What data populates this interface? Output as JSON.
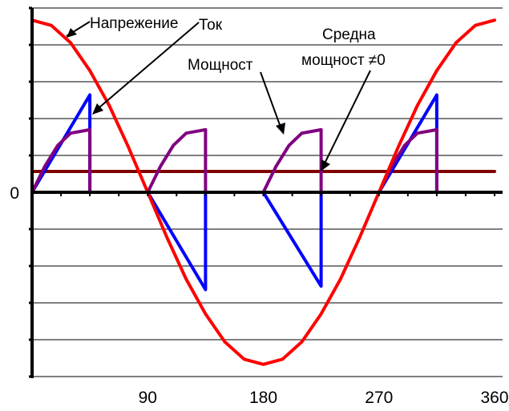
{
  "chart_data": {
    "type": "line",
    "title": "",
    "xlabel": "",
    "ylabel": "",
    "xlim": [
      0,
      360
    ],
    "ylim": [
      -1,
      1
    ],
    "x_ticks": [
      90,
      180,
      270,
      360
    ],
    "y_tick_labels": [
      {
        "y": 0,
        "label": "0"
      }
    ],
    "grid": true,
    "colors": {
      "voltage": "#ff0000",
      "current": "#0000ff",
      "power": "#800080",
      "average": "#800000",
      "axis": "#000000",
      "grid": "#000000"
    },
    "series": [
      {
        "name": "Напрежение",
        "color": "#ff0000",
        "x": [
          0,
          15,
          30,
          45,
          60,
          75,
          90,
          105,
          120,
          135,
          150,
          165,
          180,
          195,
          210,
          225,
          240,
          255,
          270,
          285,
          300,
          315,
          330,
          345,
          360
        ],
        "y": [
          0.99,
          0.96,
          0.86,
          0.7,
          0.5,
          0.26,
          0.0,
          -0.26,
          -0.5,
          -0.7,
          -0.86,
          -0.96,
          -0.99,
          -0.96,
          -0.86,
          -0.7,
          -0.5,
          -0.26,
          0.0,
          0.26,
          0.5,
          0.7,
          0.86,
          0.96,
          0.99
        ]
      },
      {
        "name": "Ток",
        "color": "#0000ff",
        "x": [
          0,
          45,
          45,
          90,
          135,
          135,
          180,
          225,
          225,
          270,
          315,
          315
        ],
        "y": [
          0,
          0.56,
          0,
          0,
          -0.56,
          0,
          0,
          -0.54,
          0,
          0,
          0.56,
          0
        ]
      },
      {
        "name": "Мощност",
        "color": "#800080",
        "x": [
          0,
          10,
          20,
          30,
          45,
          45,
          90,
          100,
          110,
          120,
          135,
          135,
          180,
          190,
          200,
          210,
          225,
          225,
          270,
          280,
          290,
          300,
          315,
          315
        ],
        "y": [
          0,
          0.15,
          0.27,
          0.34,
          0.36,
          0,
          0,
          0.15,
          0.27,
          0.34,
          0.36,
          0,
          0,
          0.15,
          0.27,
          0.34,
          0.36,
          0,
          0,
          0.15,
          0.27,
          0.34,
          0.36,
          0
        ]
      },
      {
        "name": "Средна мощност ≠0",
        "color": "#800000",
        "x": [
          0,
          360
        ],
        "y": [
          0.12,
          0.12
        ]
      }
    ],
    "annotations": {
      "voltage": "Напрежение",
      "current": "Ток",
      "power": "Мощност",
      "avg_line1": "Средна",
      "avg_line2": "мощност ≠0"
    }
  }
}
